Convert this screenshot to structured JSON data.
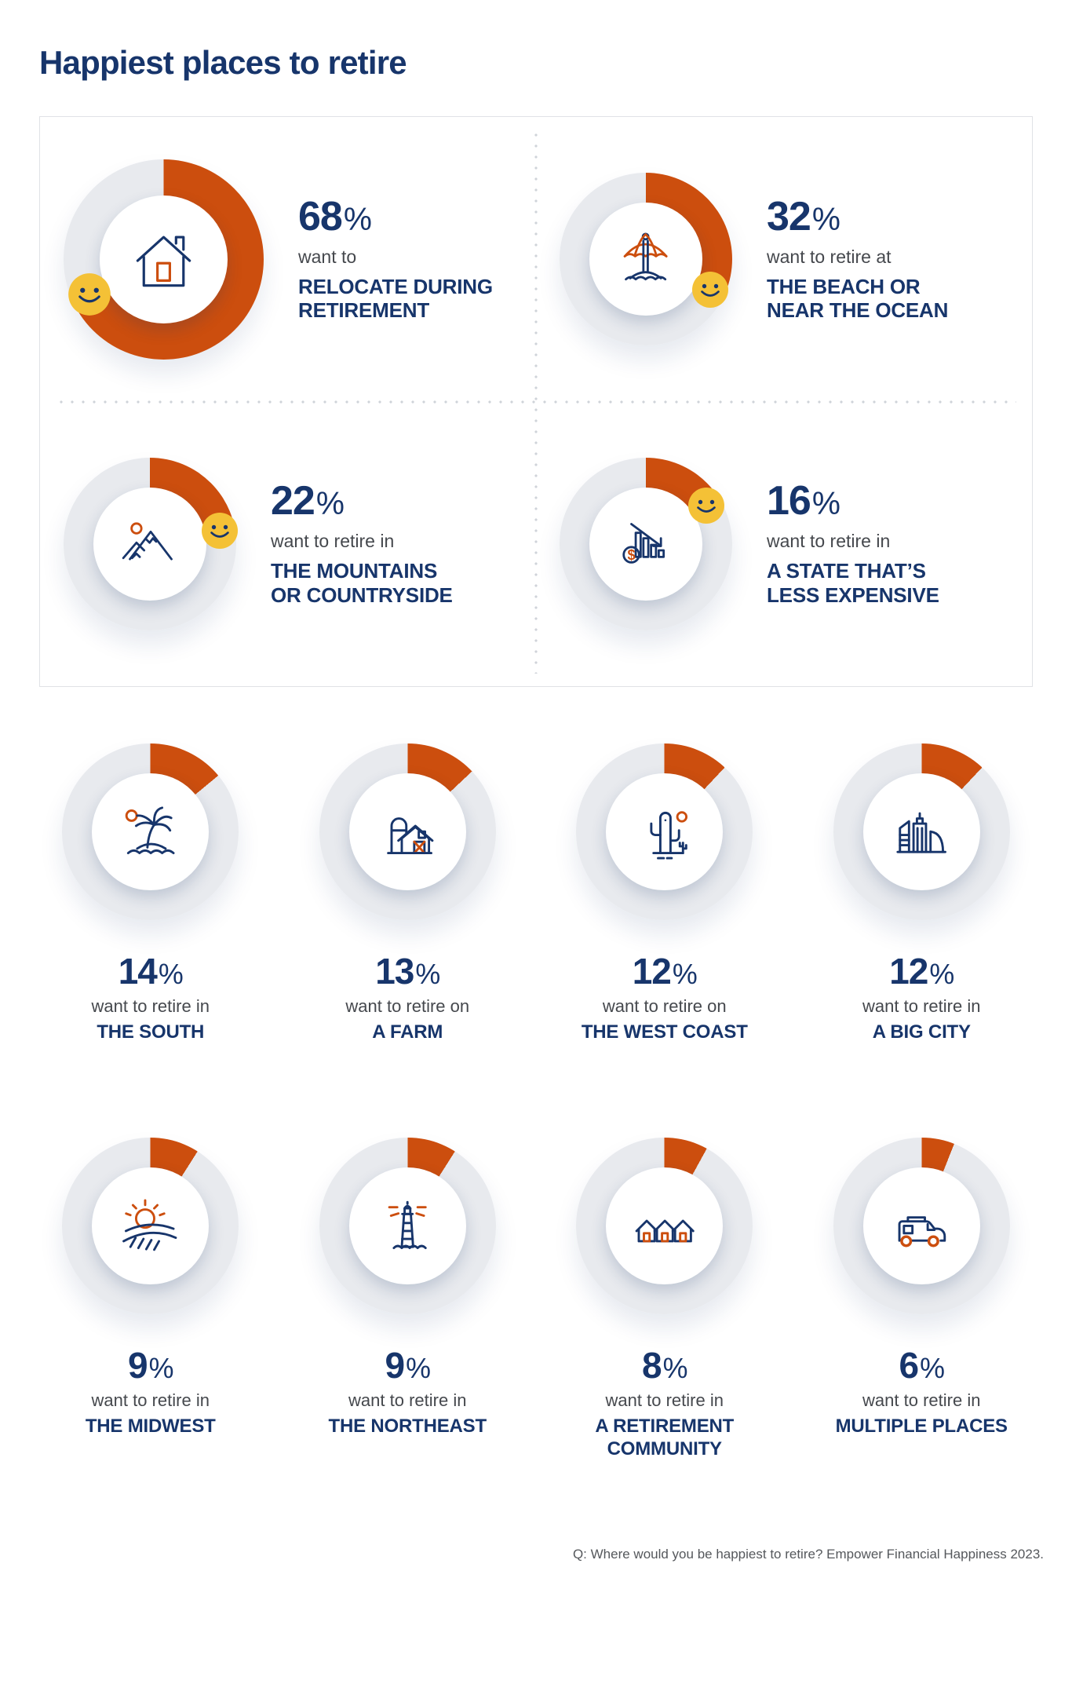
{
  "page": {
    "title": "Happiest places to retire",
    "footer": "Q: Where would you be happiest to retire? Empower Financial Happiness 2023."
  },
  "labels": {
    "percent_sign": "%"
  },
  "colors": {
    "navy": "#17356B",
    "arc_orange": "#CC4E0E",
    "ring_track": "#E8EAEE",
    "smiley_yellow": "#F4C136",
    "lead_text": "#45484D",
    "footer_text": "#55585C"
  },
  "featured": [
    {
      "percent": 68,
      "lead": "want to",
      "place": "RELOCATE DURING\nRETIREMENT",
      "icon": "house-icon"
    },
    {
      "percent": 32,
      "lead": "want to retire at",
      "place": "THE  BEACH OR\nNEAR THE OCEAN",
      "icon": "beach-umbrella-icon"
    },
    {
      "percent": 22,
      "lead": "want to retire in",
      "place": "THE MOUNTAINS\nOR COUNTRYSIDE",
      "icon": "mountains-icon"
    },
    {
      "percent": 16,
      "lead": "want to retire in",
      "place": "A STATE THAT’S\nLESS EXPENSIVE",
      "icon": "declining-chart-icon"
    }
  ],
  "grid": [
    {
      "percent": 14,
      "lead": "want to retire in",
      "place": "THE SOUTH",
      "icon": "palm-island-icon"
    },
    {
      "percent": 13,
      "lead": "want to retire on",
      "place": "A FARM",
      "icon": "barn-icon"
    },
    {
      "percent": 12,
      "lead": "want to retire on",
      "place": "THE WEST COAST",
      "icon": "cactus-icon"
    },
    {
      "percent": 12,
      "lead": "want to retire in",
      "place": "A BIG CITY",
      "icon": "city-skyline-icon"
    },
    {
      "percent": 9,
      "lead": "want to retire in",
      "place": "THE MIDWEST",
      "icon": "sun-field-icon"
    },
    {
      "percent": 9,
      "lead": "want to retire in",
      "place": "THE NORTHEAST",
      "icon": "lighthouse-icon"
    },
    {
      "percent": 8,
      "lead": "want to retire in",
      "place": "A RETIREMENT\nCOMMUNITY",
      "icon": "retirement-houses-icon"
    },
    {
      "percent": 6,
      "lead": "want to retire in",
      "place": "MULTIPLE PLACES",
      "icon": "rv-camper-icon"
    }
  ],
  "chart_data": {
    "type": "pie",
    "title": "Happiest places to retire",
    "units": "%",
    "categories": [
      "Relocate during retirement",
      "The beach or near the ocean",
      "The mountains or countryside",
      "A state that’s less expensive",
      "The South",
      "A farm",
      "The West Coast",
      "A big city",
      "The Midwest",
      "The Northeast",
      "A retirement community",
      "Multiple places"
    ],
    "values": [
      68,
      32,
      22,
      16,
      14,
      13,
      12,
      12,
      9,
      9,
      8,
      6
    ],
    "layout": "12 individual donut gauges; arc starts at 12 o'clock clockwise; top four gauges carry a smiley marker at arc end",
    "source": "Q: Where would you be happiest to retire? Empower Financial Happiness 2023."
  }
}
